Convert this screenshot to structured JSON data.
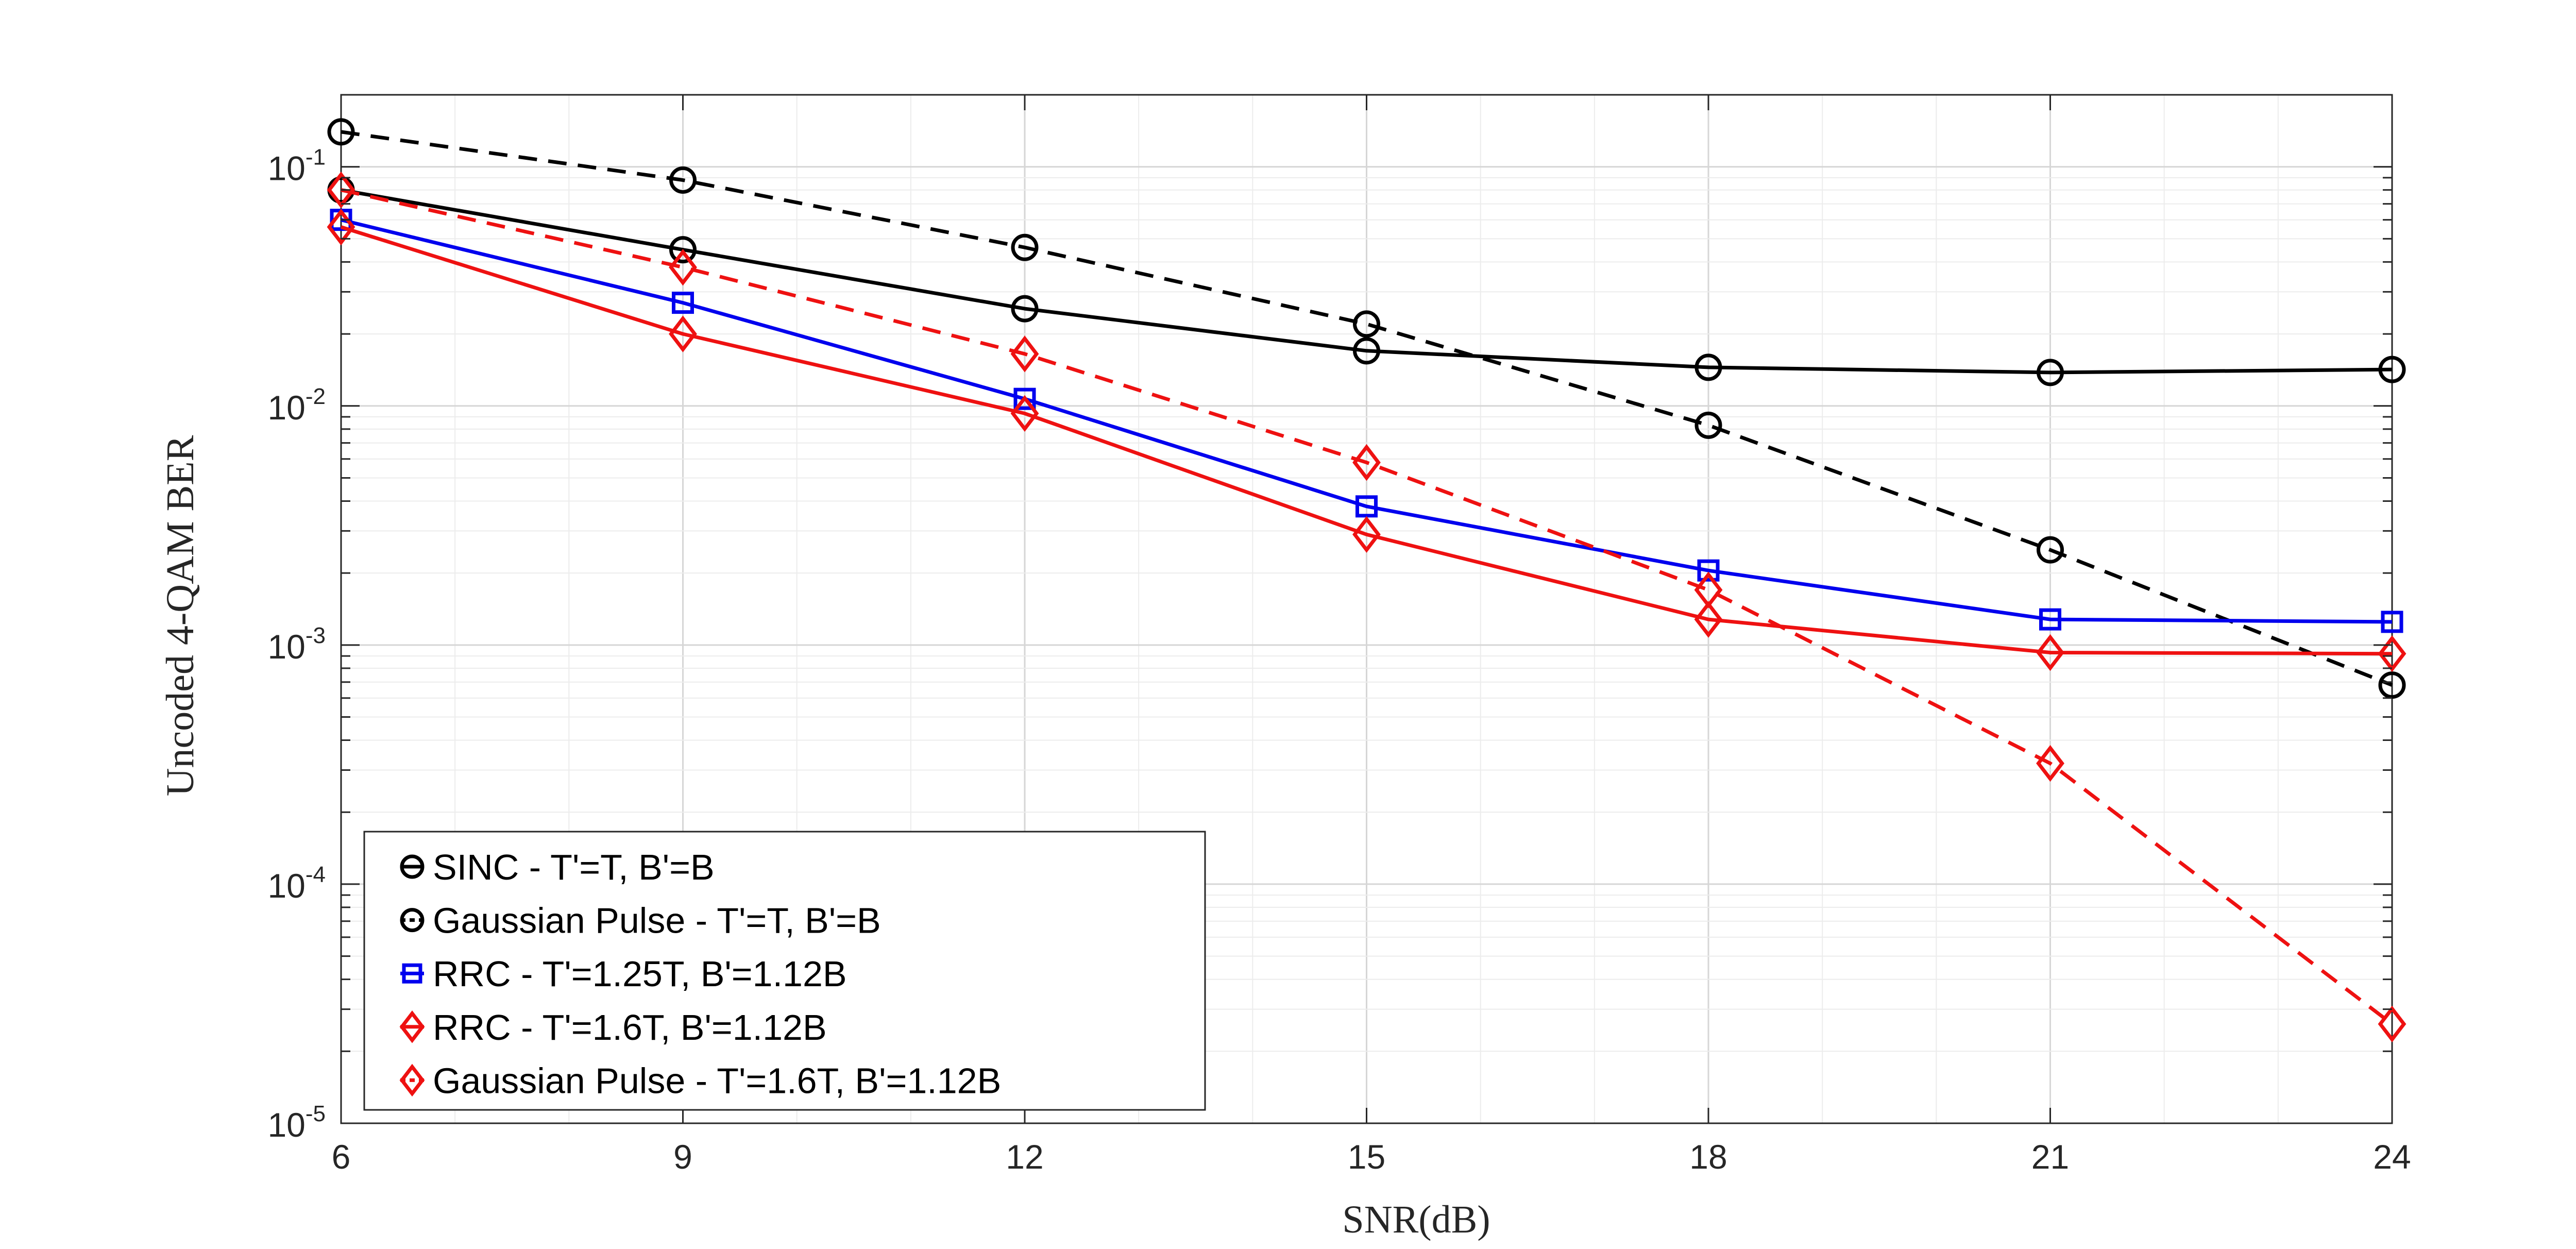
{
  "chart_data": {
    "type": "line",
    "title": "",
    "xlabel": "SNR(dB)",
    "ylabel": "Uncoded 4-QAM BER",
    "xlim": [
      6,
      24
    ],
    "ylim": [
      1e-05,
      0.2
    ],
    "yscale": "log",
    "grid": true,
    "minor_grid": true,
    "legend_location": "bottom-left",
    "x": [
      6,
      9,
      12,
      15,
      18,
      21,
      24
    ],
    "x_tick_labels": [
      "6",
      "9",
      "12",
      "15",
      "18",
      "21",
      "24"
    ],
    "y_ticks": [
      {
        "value": 1e-05,
        "base": "10",
        "exp": "-5"
      },
      {
        "value": 0.0001,
        "base": "10",
        "exp": "-4"
      },
      {
        "value": 0.001,
        "base": "10",
        "exp": "-3"
      },
      {
        "value": 0.01,
        "base": "10",
        "exp": "-2"
      },
      {
        "value": 0.1,
        "base": "10",
        "exp": "-1"
      }
    ],
    "series": [
      {
        "name": "SINC - T'=T, B'=B",
        "color": "#000000",
        "dash": "solid",
        "marker": "circle",
        "values": [
          0.08,
          0.045,
          0.0255,
          0.017,
          0.0145,
          0.0138,
          0.0142
        ]
      },
      {
        "name": "Gaussian Pulse - T'=T, B'=B",
        "color": "#000000",
        "dash": "dashed",
        "marker": "circle",
        "values": [
          0.14,
          0.088,
          0.046,
          0.022,
          0.0083,
          0.0025,
          0.00068
        ]
      },
      {
        "name": "RRC - T'=1.25T, B'=1.12B",
        "color": "#0000ee",
        "dash": "solid",
        "marker": "square",
        "values": [
          0.06,
          0.027,
          0.0107,
          0.0038,
          0.00205,
          0.00128,
          0.00125
        ]
      },
      {
        "name": "RRC - T'=1.6T, B'=1.12B",
        "color": "#ee1111",
        "dash": "solid",
        "marker": "diamond",
        "values": [
          0.056,
          0.02,
          0.0093,
          0.0029,
          0.00128,
          0.00093,
          0.00092
        ]
      },
      {
        "name": "Gaussian Pulse - T'=1.6T, B'=1.12B",
        "color": "#ee1111",
        "dash": "dashed",
        "marker": "diamond",
        "values": [
          0.08,
          0.038,
          0.0165,
          0.0058,
          0.0017,
          0.00032,
          2.6e-05
        ]
      }
    ]
  }
}
